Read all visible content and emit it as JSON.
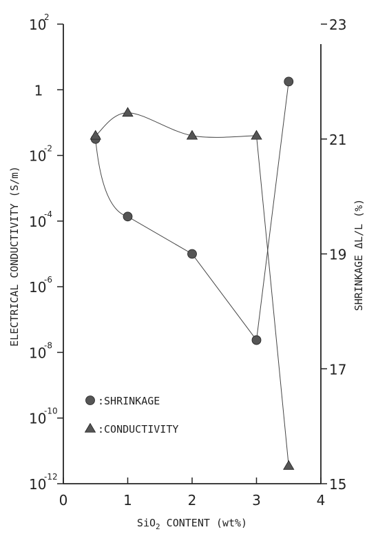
{
  "chart_data": {
    "type": "line",
    "xlabel_parts": [
      "Si",
      "O",
      "2",
      " CONTENT (wt%)"
    ],
    "ylabel_left": "ELECTRICAL CONDUCTIVITY (S/m)",
    "ylabel_right": "SHRINKAGE   ΔL/L (%)",
    "x_ticks": [
      "0",
      "1",
      "2",
      "3",
      "4"
    ],
    "xlim": [
      0,
      4
    ],
    "y_left": {
      "scale": "log",
      "lim_exp": [
        -12,
        2
      ],
      "ticks": [
        {
          "exp": 2,
          "base": "10",
          "sup": "2"
        },
        {
          "exp": 0,
          "base": "1",
          "sup": ""
        },
        {
          "exp": -2,
          "base": "10",
          "sup": "-2"
        },
        {
          "exp": -4,
          "base": "10",
          "sup": "-4"
        },
        {
          "exp": -6,
          "base": "10",
          "sup": "-6"
        },
        {
          "exp": -8,
          "base": "10",
          "sup": "-8"
        },
        {
          "exp": -10,
          "base": "10",
          "sup": "-10"
        },
        {
          "exp": -12,
          "base": "10",
          "sup": "-12"
        }
      ]
    },
    "y_right": {
      "scale": "linear",
      "lim": [
        15,
        23
      ],
      "ticks": [
        "15",
        "17",
        "19",
        "21",
        "23"
      ]
    },
    "series": [
      {
        "name": "SHRINKAGE",
        "marker": "circle",
        "axis": "right",
        "x": [
          0.5,
          1,
          2,
          3,
          3.5
        ],
        "y": [
          21.0,
          19.65,
          19.0,
          17.5,
          22.0
        ]
      },
      {
        "name": "CONDUCTIVITY",
        "marker": "triangle",
        "axis": "left",
        "x": [
          0.5,
          1,
          2,
          3,
          3.5
        ],
        "y": [
          0.04,
          0.2,
          0.04,
          0.04,
          3.5e-12
        ]
      }
    ],
    "legend": {
      "placement": "bottom-left",
      "items": [
        {
          "marker": "circle",
          "label": ":SHRINKAGE"
        },
        {
          "marker": "triangle",
          "label": ":CONDUCTIVITY"
        }
      ]
    },
    "grid": false,
    "colors": {
      "marker": "#555555",
      "line": "#444444",
      "axis": "#222222"
    }
  }
}
